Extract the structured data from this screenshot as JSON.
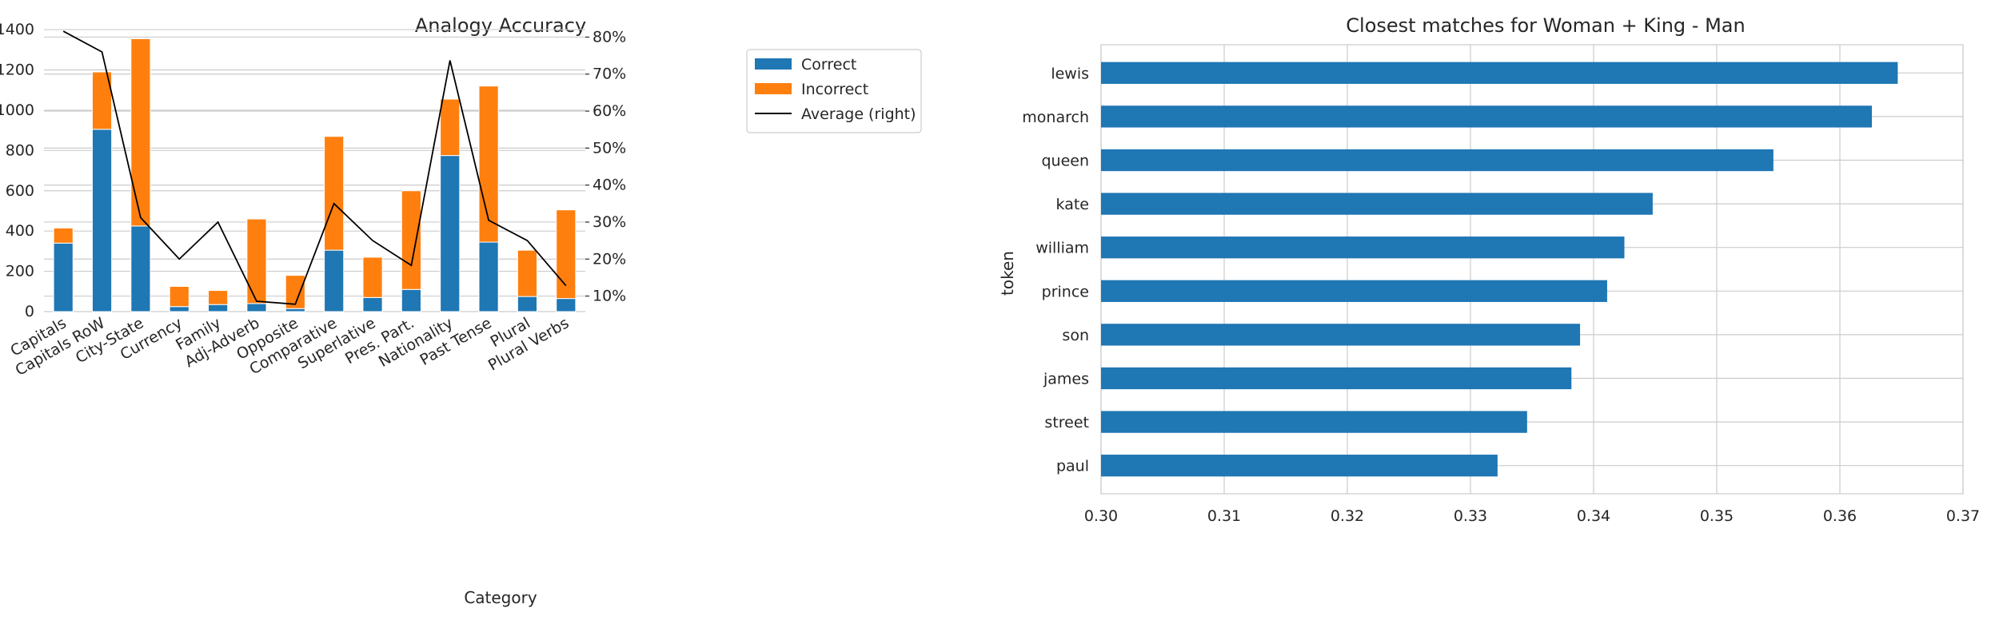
{
  "chart_data": [
    {
      "type": "bar",
      "stacked": true,
      "title": "Analogy Accuracy",
      "xlabel": "Category",
      "ylabel": "",
      "categories": [
        "Capitals",
        "Capitals RoW",
        "City-State",
        "Currency",
        "Family",
        "Adj-Adverb",
        "Opposite",
        "Comparative",
        "Superlative",
        "Pres. Part.",
        "Nationality",
        "Past Tense",
        "Plural",
        "Plural Verbs"
      ],
      "series": [
        {
          "name": "Correct",
          "color": "#1f77b4",
          "values": [
            340,
            905,
            425,
            25,
            35,
            40,
            15,
            305,
            70,
            110,
            775,
            345,
            75,
            65
          ]
        },
        {
          "name": "Incorrect",
          "color": "#ff7f0e",
          "values": [
            75,
            285,
            930,
            100,
            70,
            420,
            165,
            565,
            200,
            490,
            280,
            775,
            230,
            440
          ]
        }
      ],
      "line_series": {
        "name": "Average (right)",
        "color": "#000000",
        "axis": "right",
        "values": [
          81.6,
          76,
          31.2,
          20,
          30,
          8.6,
          7.8,
          35,
          25,
          18.3,
          73.7,
          30.5,
          25,
          12.8
        ]
      },
      "ylim": [
        0,
        1440
      ],
      "yticks": [
        0,
        200,
        400,
        600,
        800,
        1000,
        1200,
        1400
      ],
      "y2lim": [
        5.8,
        84.2
      ],
      "y2ticks": [
        10,
        20,
        30,
        40,
        50,
        60,
        70,
        80
      ],
      "y2ticklabels": [
        "10%",
        "20%",
        "30%",
        "40%",
        "50%",
        "60%",
        "70%",
        "80%"
      ],
      "legend": "top-right",
      "grid": true
    },
    {
      "type": "bar",
      "orientation": "horizontal",
      "title": "Closest matches for Woman + King - Man",
      "xlabel": "",
      "ylabel": "token",
      "categories": [
        "lewis",
        "monarch",
        "queen",
        "kate",
        "william",
        "prince",
        "son",
        "james",
        "street",
        "paul"
      ],
      "values": [
        0.3647,
        0.3626,
        0.3546,
        0.3448,
        0.3425,
        0.3411,
        0.3389,
        0.3382,
        0.3346,
        0.3322
      ],
      "color": "#1f77b4",
      "xlim": [
        0.3,
        0.37
      ],
      "xticks": [
        0.3,
        0.31,
        0.32,
        0.33,
        0.34,
        0.35,
        0.36,
        0.37
      ],
      "xticklabels": [
        "0.30",
        "0.31",
        "0.32",
        "0.33",
        "0.34",
        "0.35",
        "0.36",
        "0.37"
      ],
      "grid": true
    }
  ]
}
